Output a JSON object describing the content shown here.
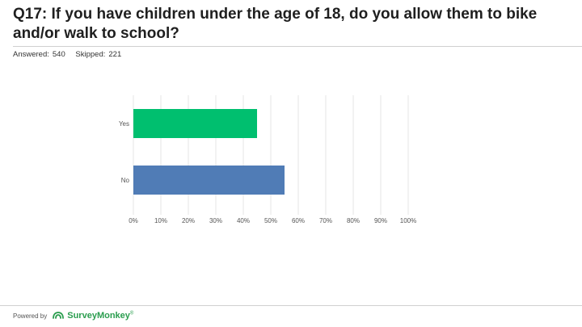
{
  "question": {
    "title": "Q17: If you have children under the age of 18, do you allow them to bike and/or walk to school?"
  },
  "stats": {
    "answered_label": "Answered:",
    "answered_value": "540",
    "skipped_label": "Skipped:",
    "skipped_value": "221"
  },
  "footer": {
    "powered_by": "Powered by",
    "brand": "SurveyMonkey",
    "brand_mark": "®",
    "brand_color": "#2a9d4e"
  },
  "chart_data": {
    "type": "bar",
    "orientation": "horizontal",
    "categories": [
      "Yes",
      "No"
    ],
    "values": [
      45,
      55
    ],
    "colors": [
      "#00bf6f",
      "#507cb6"
    ],
    "xlim": [
      0,
      100
    ],
    "xticks": [
      "0%",
      "10%",
      "20%",
      "30%",
      "40%",
      "50%",
      "60%",
      "70%",
      "80%",
      "90%",
      "100%"
    ],
    "grid": true
  }
}
